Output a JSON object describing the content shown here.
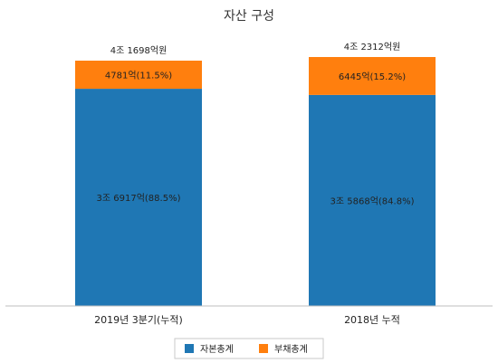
{
  "chart_data": {
    "type": "bar",
    "stacked": true,
    "title": "자산 구성",
    "categories": [
      "2019년 3분기(누적)",
      "2018년 누적"
    ],
    "totals": [
      41698,
      42312
    ],
    "total_labels": [
      "4조 1698억원",
      "4조 2312억원"
    ],
    "series": [
      {
        "name": "자본총계",
        "color": "#1f77b4",
        "values": [
          36917,
          35868
        ],
        "labels": [
          "3조 6917억(88.5%)",
          "3조 5868억(84.8%)"
        ]
      },
      {
        "name": "부채총계",
        "color": "#ff7f0e",
        "values": [
          4781,
          6445
        ],
        "labels": [
          "4781억(11.5%)",
          "6445억(15.2%)"
        ]
      }
    ],
    "legend_position": "bottom",
    "grid": false
  }
}
